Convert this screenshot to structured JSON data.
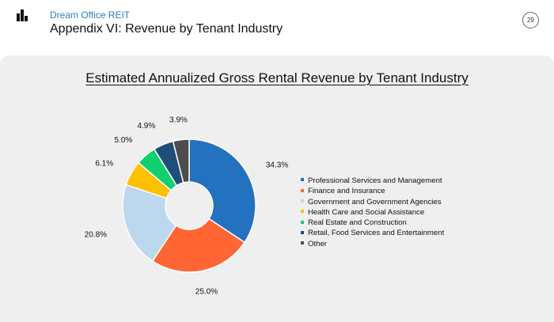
{
  "header": {
    "brand": "Dream Office REIT",
    "title": "Appendix VI: Revenue by Tenant Industry",
    "page_number": "29",
    "logo_icon": "dream-logo-icon"
  },
  "chart_data": {
    "type": "pie",
    "title": "Estimated Annualized Gross Rental Revenue by Tenant Industry",
    "categories": [
      "Professional Services and Management",
      "Finance and Insurance",
      "Government and Government Agencies",
      "Health Care and Social Assistance",
      "Real Estate and Construction",
      "Retail, Food Services and Entertainment",
      "Other"
    ],
    "values": [
      34.3,
      25.0,
      20.8,
      6.1,
      5.0,
      4.9,
      3.9
    ],
    "labels": [
      "34.3%",
      "25.0%",
      "20.8%",
      "6.1%",
      "5.0%",
      "4.9%",
      "3.9%"
    ],
    "colors": [
      "#2272bf",
      "#ff6633",
      "#bdd7ee",
      "#ffc000",
      "#12d06e",
      "#1f4e79",
      "#4d4d4d"
    ],
    "legend_position": "right"
  }
}
